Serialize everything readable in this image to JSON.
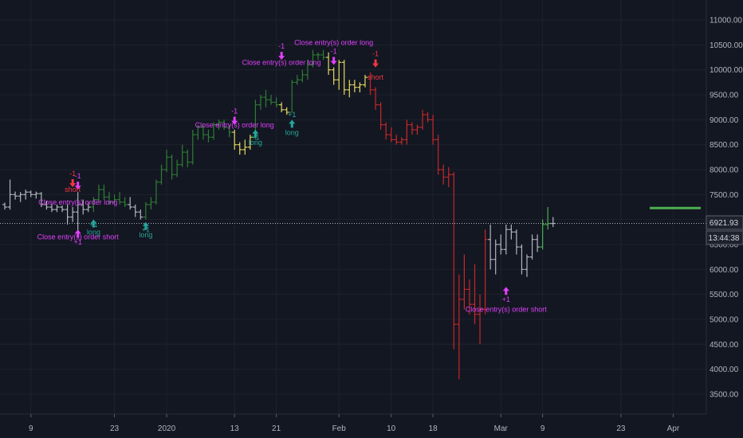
{
  "chart_data": {
    "type": "ohlc",
    "title": "",
    "xlabel": "",
    "ylabel": "",
    "ylim": [
      3100,
      11400
    ],
    "x_ticks": [
      "9",
      "23",
      "2020",
      "13",
      "21",
      "Feb",
      "10",
      "18",
      "Mar",
      "9",
      "23",
      "Apr"
    ],
    "y_ticks": [
      "3500.00",
      "4000.00",
      "4500.00",
      "5000.00",
      "5500.00",
      "6000.00",
      "6500.00",
      "7000.00",
      "7500.00",
      "8000.00",
      "8500.00",
      "9000.00",
      "9500.00",
      "10000.00",
      "10500.00",
      "11000.00"
    ],
    "price_label": "6921.93",
    "countdown_label": "13:44:38",
    "last_price": 6921.93,
    "take_profit_level": 7230,
    "colors": {
      "background": "#131722",
      "neutral": "#b2b5be",
      "up": "#2e7d32",
      "pullback": "#e6d860",
      "down": "#c62828",
      "recovery": "#4caf50",
      "signal_close": "#e040fb",
      "signal_long": "#26a69a",
      "signal_short": "#f23645",
      "tp_line": "#4caf50"
    },
    "series": [
      {
        "color": "neutral",
        "values": [
          [
            7300,
            7340,
            7200,
            7250
          ],
          [
            7250,
            7800,
            7200,
            7500
          ],
          [
            7500,
            7560,
            7400,
            7470
          ],
          [
            7470,
            7550,
            7350,
            7500
          ],
          [
            7500,
            7600,
            7400,
            7550
          ],
          [
            7550,
            7580,
            7450,
            7500
          ],
          [
            7500,
            7560,
            7420,
            7520
          ],
          [
            7520,
            7550,
            7250,
            7300
          ],
          [
            7300,
            7380,
            7200,
            7250
          ],
          [
            7250,
            7320,
            7150,
            7200
          ],
          [
            7200,
            7300,
            7150,
            7250
          ],
          [
            7250,
            7280,
            7150,
            7200
          ],
          [
            7200,
            7300,
            6900,
            7050
          ],
          [
            7050,
            7250,
            6950,
            7150
          ],
          [
            7150,
            7550,
            6700,
            7300
          ],
          [
            7300,
            7400,
            7100,
            7200
          ],
          [
            7200,
            7350,
            7150,
            7250
          ]
        ]
      },
      {
        "color": "up",
        "values": [
          [
            7250,
            7450,
            7150,
            7400
          ],
          [
            7400,
            7700,
            7350,
            7600
          ],
          [
            7600,
            7700,
            7400,
            7450
          ],
          [
            7450,
            7550,
            7300,
            7350
          ],
          [
            7350,
            7500,
            7300,
            7400
          ],
          [
            7400,
            7550,
            7300,
            7350
          ],
          [
            7350,
            7450,
            7250,
            7300
          ]
        ]
      },
      {
        "color": "neutral",
        "values": [
          [
            7300,
            7450,
            7200,
            7250
          ],
          [
            7250,
            7300,
            7050,
            7150
          ],
          [
            7150,
            7200,
            7000,
            7050
          ]
        ]
      },
      {
        "color": "up",
        "values": [
          [
            7050,
            7350,
            7000,
            7300
          ],
          [
            7300,
            7450,
            7200,
            7350
          ],
          [
            7350,
            7800,
            7300,
            7750
          ],
          [
            7750,
            8100,
            7700,
            8000
          ],
          [
            8000,
            8400,
            7950,
            8250
          ],
          [
            8250,
            8300,
            7800,
            7900
          ],
          [
            7900,
            8200,
            7850,
            8100
          ],
          [
            8100,
            8500,
            8050,
            8350
          ],
          [
            8350,
            8400,
            8050,
            8150
          ],
          [
            8150,
            8800,
            8100,
            8700
          ],
          [
            8700,
            8900,
            8600,
            8850
          ],
          [
            8850,
            8900,
            8600,
            8700
          ],
          [
            8700,
            8800,
            8550,
            8650
          ],
          [
            8650,
            8950,
            8600,
            8900
          ],
          [
            8900,
            9000,
            8800,
            8950
          ],
          [
            8950,
            9000,
            8800,
            8850
          ],
          [
            8850,
            8900,
            8650,
            8750
          ]
        ]
      },
      {
        "color": "pullback",
        "values": [
          [
            8750,
            8800,
            8400,
            8500
          ],
          [
            8500,
            8550,
            8300,
            8400
          ],
          [
            8400,
            8600,
            8300,
            8450
          ],
          [
            8450,
            8700,
            8400,
            8650
          ]
        ]
      },
      {
        "color": "up",
        "values": [
          [
            8650,
            9400,
            8600,
            9300
          ],
          [
            9300,
            9500,
            9200,
            9450
          ],
          [
            9450,
            9600,
            9250,
            9400
          ],
          [
            9400,
            9500,
            9300,
            9350
          ],
          [
            9350,
            9450,
            9250,
            9300
          ]
        ]
      },
      {
        "color": "pullback",
        "values": [
          [
            9300,
            9350,
            9150,
            9200
          ],
          [
            9200,
            9250,
            9100,
            9150
          ]
        ]
      },
      {
        "color": "up",
        "values": [
          [
            9150,
            9800,
            9150,
            9750
          ],
          [
            9750,
            9900,
            9700,
            9800
          ],
          [
            9800,
            10000,
            9750,
            9900
          ],
          [
            9900,
            10200,
            9800,
            10100
          ],
          [
            10100,
            10400,
            10050,
            10300
          ],
          [
            10300,
            10350,
            10200,
            10300
          ],
          [
            10300,
            10400,
            10200,
            10250
          ]
        ]
      },
      {
        "color": "pullback",
        "values": [
          [
            10250,
            10350,
            9900,
            10000
          ],
          [
            10000,
            10050,
            9700,
            9800
          ],
          [
            9800,
            10200,
            9600,
            10150
          ],
          [
            10150,
            10200,
            9500,
            9600
          ],
          [
            9600,
            9800,
            9450,
            9700
          ],
          [
            9700,
            9800,
            9550,
            9650
          ],
          [
            9650,
            9750,
            9550,
            9700
          ],
          [
            9700,
            9900,
            9650,
            9850
          ]
        ]
      },
      {
        "color": "down",
        "values": [
          [
            9850,
            9950,
            9500,
            9600
          ],
          [
            9600,
            9650,
            9200,
            9300
          ],
          [
            9300,
            9350,
            8800,
            8900
          ],
          [
            8900,
            8950,
            8600,
            8700
          ],
          [
            8700,
            8850,
            8550,
            8600
          ],
          [
            8600,
            8700,
            8500,
            8550
          ],
          [
            8550,
            8650,
            8500,
            8600
          ],
          [
            8600,
            9000,
            8500,
            8900
          ],
          [
            8900,
            8950,
            8700,
            8800
          ],
          [
            8800,
            8900,
            8700,
            8850
          ],
          [
            8850,
            9200,
            8800,
            9100
          ],
          [
            9100,
            9150,
            8950,
            9000
          ],
          [
            9000,
            9100,
            8500,
            8600
          ],
          [
            8600,
            8700,
            7900,
            8000
          ],
          [
            8000,
            8100,
            7700,
            7850
          ],
          [
            7850,
            8050,
            7650,
            7900
          ],
          [
            7900,
            7950,
            4400,
            4900
          ],
          [
            4900,
            5900,
            3800,
            5400
          ],
          [
            5400,
            6300,
            5200,
            5600
          ],
          [
            5600,
            5800,
            5100,
            5300
          ],
          [
            5300,
            6100,
            4900,
            5100
          ],
          [
            5100,
            5500,
            4500,
            5200
          ],
          [
            5200,
            6800,
            5100,
            6600
          ]
        ]
      },
      {
        "color": "neutral",
        "values": [
          [
            6600,
            6900,
            6000,
            6200
          ],
          [
            6200,
            6600,
            5900,
            6500
          ],
          [
            6500,
            6700,
            6300,
            6400
          ],
          [
            6400,
            6900,
            6300,
            6800
          ],
          [
            6800,
            6900,
            6600,
            6750
          ],
          [
            6750,
            6800,
            6300,
            6450
          ],
          [
            6450,
            6500,
            5900,
            6000
          ],
          [
            6000,
            6300,
            5850,
            6250
          ],
          [
            6250,
            6700,
            6200,
            6600
          ],
          [
            6600,
            6700,
            6350,
            6450
          ]
        ]
      },
      {
        "color": "recovery",
        "values": [
          [
            6450,
            7000,
            6400,
            6900
          ],
          [
            6900,
            7250,
            6800,
            6920
          ]
        ]
      },
      {
        "color": "neutral",
        "values": [
          [
            6920,
            7050,
            6850,
            6921.93
          ]
        ]
      }
    ],
    "annotations": [
      {
        "bar": 14,
        "role": "close",
        "dir": "down",
        "value": 7600,
        "label": "-1"
      },
      {
        "bar": 14,
        "role": "close",
        "dir": "up",
        "value": 6800,
        "label": "+1"
      },
      {
        "bar": 14,
        "role": "close",
        "dir": "none",
        "value": 7300,
        "label": "Close entry(s) order long"
      },
      {
        "bar": 14,
        "role": "close",
        "dir": "none",
        "value": 6600,
        "label": "Close entry(s) order short"
      },
      {
        "bar": 13,
        "role": "short",
        "dir": "down",
        "value": 7650,
        "label": "-1"
      },
      {
        "bar": 13,
        "role": "short",
        "dir": "none",
        "value": 7550,
        "label": "short"
      },
      {
        "bar": 17,
        "role": "long",
        "dir": "up",
        "value": 7000,
        "label": "long"
      },
      {
        "bar": 17,
        "role": "long",
        "dir": "none",
        "value": 6850,
        "label": "+1"
      },
      {
        "bar": 27,
        "role": "long",
        "dir": "up",
        "value": 6950,
        "label": "long"
      },
      {
        "bar": 27,
        "role": "long",
        "dir": "none",
        "value": 6750,
        "label": "+1"
      },
      {
        "bar": 44,
        "role": "close",
        "dir": "down",
        "value": 8900,
        "label": "-1"
      },
      {
        "bar": 44,
        "role": "close",
        "dir": "none",
        "value": 8850,
        "label": "Close entry(s) order long"
      },
      {
        "bar": 48,
        "role": "long",
        "dir": "up",
        "value": 8800,
        "label": "long"
      },
      {
        "bar": 48,
        "role": "long",
        "dir": "none",
        "value": 8600,
        "label": "+1"
      },
      {
        "bar": 53,
        "role": "close",
        "dir": "down",
        "value": 10200,
        "label": "-1"
      },
      {
        "bar": 53,
        "role": "close",
        "dir": "none",
        "value": 10100,
        "label": "Close entry(s) order long"
      },
      {
        "bar": 55,
        "role": "long",
        "dir": "up",
        "value": 9000,
        "label": "long"
      },
      {
        "bar": 55,
        "role": "long",
        "dir": "none",
        "value": 9050,
        "label": "+1"
      },
      {
        "bar": 63,
        "role": "close",
        "dir": "down",
        "value": 10100,
        "label": "-1"
      },
      {
        "bar": 63,
        "role": "close",
        "dir": "none",
        "value": 10500,
        "label": "Close entry(s) order long"
      },
      {
        "bar": 71,
        "role": "short",
        "dir": "down",
        "value": 10050,
        "label": "-1"
      },
      {
        "bar": 71,
        "role": "short",
        "dir": "none",
        "value": 9800,
        "label": "short"
      },
      {
        "bar": 96,
        "role": "close",
        "dir": "up",
        "value": 5650,
        "label": "+1"
      },
      {
        "bar": 96,
        "role": "close",
        "dir": "none",
        "value": 5150,
        "label": "Close entry(s) order short"
      }
    ]
  }
}
